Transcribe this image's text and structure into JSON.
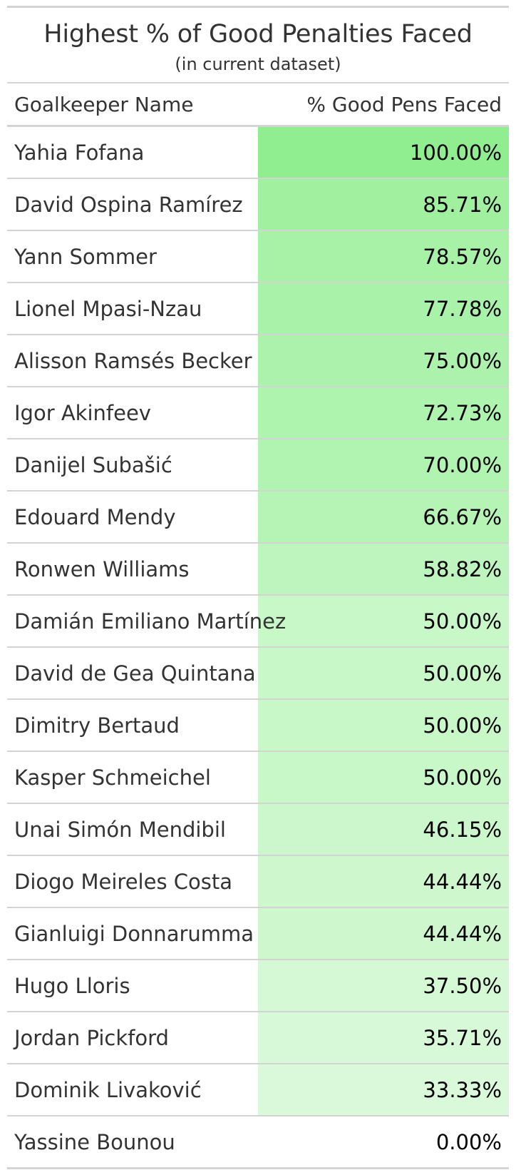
{
  "chart_data": {
    "type": "table",
    "title": "Highest % of Good Penalties Faced",
    "subtitle": "(in current dataset)",
    "columns": [
      "Goalkeeper Name",
      "% Good Pens Faced"
    ],
    "rows": [
      {
        "name": "Yahia Fofana",
        "pct": 100.0,
        "label": "100.00%"
      },
      {
        "name": "David Ospina Ramírez",
        "pct": 85.71,
        "label": "85.71%"
      },
      {
        "name": "Yann Sommer",
        "pct": 78.57,
        "label": "78.57%"
      },
      {
        "name": "Lionel Mpasi-Nzau",
        "pct": 77.78,
        "label": "77.78%"
      },
      {
        "name": "Alisson Ramsés Becker",
        "pct": 75.0,
        "label": "75.00%"
      },
      {
        "name": "Igor Akinfeev",
        "pct": 72.73,
        "label": "72.73%"
      },
      {
        "name": "Danijel Subašić",
        "pct": 70.0,
        "label": "70.00%"
      },
      {
        "name": "Edouard Mendy",
        "pct": 66.67,
        "label": "66.67%"
      },
      {
        "name": "Ronwen Williams",
        "pct": 58.82,
        "label": "58.82%"
      },
      {
        "name": "Damián Emiliano Martínez",
        "pct": 50.0,
        "label": "50.00%"
      },
      {
        "name": "David de Gea Quintana",
        "pct": 50.0,
        "label": "50.00%"
      },
      {
        "name": "Dimitry Bertaud",
        "pct": 50.0,
        "label": "50.00%"
      },
      {
        "name": "Kasper Schmeichel",
        "pct": 50.0,
        "label": "50.00%"
      },
      {
        "name": "Unai Simón Mendibil",
        "pct": 46.15,
        "label": "46.15%"
      },
      {
        "name": "Diogo Meireles Costa",
        "pct": 44.44,
        "label": "44.44%"
      },
      {
        "name": "Gianluigi Donnarumma",
        "pct": 44.44,
        "label": "44.44%"
      },
      {
        "name": "Hugo Lloris",
        "pct": 37.5,
        "label": "37.50%"
      },
      {
        "name": "Jordan Pickford",
        "pct": 35.71,
        "label": "35.71%"
      },
      {
        "name": "Dominik Livaković",
        "pct": 33.33,
        "label": "33.33%"
      },
      {
        "name": "Yassine Bounou",
        "pct": 0.0,
        "label": "0.00%"
      }
    ],
    "color_scale": {
      "low": "#ffffff",
      "high": "#90ee90"
    }
  }
}
